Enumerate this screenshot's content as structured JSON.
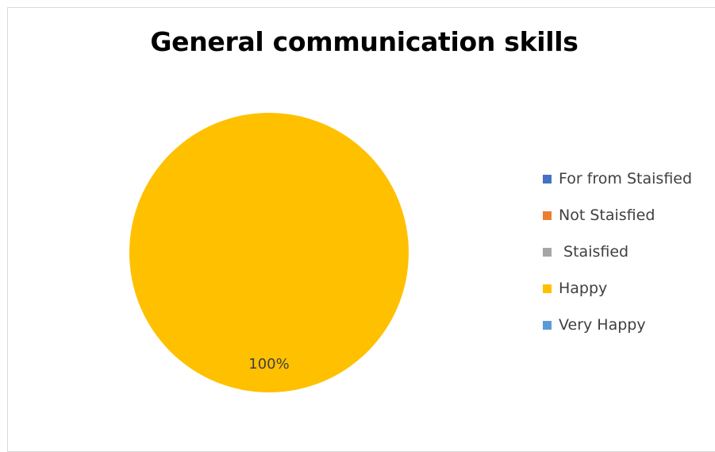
{
  "chart_data": {
    "type": "pie",
    "title": "General communication skills",
    "categories": [
      "For from Staisfied",
      "Not Staisfied",
      " Staisfied",
      "Happy",
      "Very Happy"
    ],
    "values": [
      0,
      0,
      0,
      100,
      0
    ],
    "colors": [
      "#4472C4",
      "#ED7D31",
      "#A5A5A5",
      "#FFC000",
      "#5B9BD5"
    ],
    "data_labels": [
      "",
      "",
      "",
      "100%",
      ""
    ],
    "legend_position": "right"
  }
}
